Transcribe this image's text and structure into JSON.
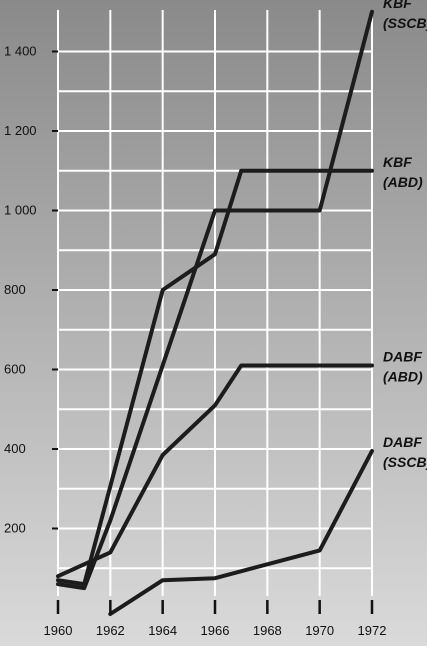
{
  "chart_data": {
    "type": "line",
    "x": [
      1960,
      1961,
      1962,
      1964,
      1966,
      1967,
      1968,
      1970,
      1972
    ],
    "xticks": [
      "1960",
      "1962",
      "1964",
      "1966",
      "1968",
      "1970",
      "1972"
    ],
    "yticks": [
      "200",
      "400",
      "600",
      "800",
      "1 000",
      "1 200",
      "1 400"
    ],
    "xlim": [
      1960,
      1972
    ],
    "ylim": [
      0,
      1500
    ],
    "grid": true,
    "series": [
      {
        "name": "KBF (SSCB)",
        "label_lines": [
          "KBF",
          "(SSCB)"
        ],
        "points": [
          [
            1960,
            60
          ],
          [
            1961,
            50
          ],
          [
            1962,
            220
          ],
          [
            1966,
            1000
          ],
          [
            1970,
            1000
          ],
          [
            1972,
            1500
          ]
        ]
      },
      {
        "name": "KBF (ABD)",
        "label_lines": [
          "KBF",
          "(ABD)"
        ],
        "points": [
          [
            1960,
            70
          ],
          [
            1961,
            60
          ],
          [
            1964,
            800
          ],
          [
            1966,
            890
          ],
          [
            1967,
            1100
          ],
          [
            1972,
            1100
          ]
        ]
      },
      {
        "name": "DABF (ABD)",
        "label_lines": [
          "DABF",
          "(ABD)"
        ],
        "points": [
          [
            1960,
            80
          ],
          [
            1962,
            140
          ],
          [
            1964,
            385
          ],
          [
            1966,
            510
          ],
          [
            1967,
            610
          ],
          [
            1972,
            610
          ]
        ]
      },
      {
        "name": "DABF (SSCB)",
        "label_lines": [
          "DABF",
          "(SSCB)"
        ],
        "points": [
          [
            1962,
            -15
          ],
          [
            1964,
            70
          ],
          [
            1966,
            75
          ],
          [
            1970,
            145
          ],
          [
            1972,
            395
          ]
        ]
      }
    ]
  },
  "colors": {
    "background_top": "#8a8a8a",
    "background_bottom": "#dadada",
    "grid": "#ffffff",
    "line": "#1c1c1c",
    "text": "#111111"
  }
}
